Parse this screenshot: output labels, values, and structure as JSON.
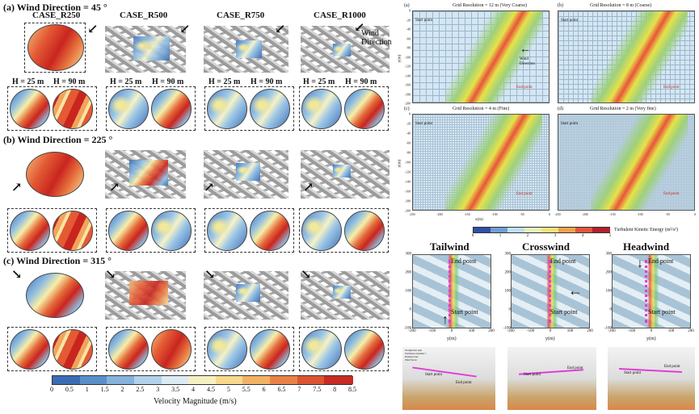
{
  "left": {
    "sections": [
      {
        "title": "(a) Wind Direction = 45 °"
      },
      {
        "title": "(b) Wind Direction = 225 °"
      },
      {
        "title": "(c) Wind Direction = 315 °"
      }
    ],
    "cases": [
      "CASE_R250",
      "CASE_R500",
      "CASE_R750",
      "CASE_R1000"
    ],
    "height_labels": [
      "H = 25 m",
      "H = 90 m"
    ],
    "wind_label": "Wind Direction",
    "colorbar": {
      "ticks": [
        "0",
        "0.5",
        "1",
        "1.5",
        "2",
        "2.5",
        "3",
        "3.5",
        "4",
        "4.5",
        "5",
        "5.5",
        "6",
        "6.5",
        "7",
        "7.5",
        "8",
        "8.5"
      ],
      "label": "Velocity Magnitude (m/s)",
      "colors": [
        "#3a6db3",
        "#5a8fca",
        "#86b2dc",
        "#b2d2ea",
        "#dcebf3",
        "#f4f0c2",
        "#f6d98e",
        "#f2b266",
        "#ea8247",
        "#dd5433",
        "#c82a24"
      ]
    }
  },
  "tke_panels": [
    {
      "tag": "(a)",
      "title": "Grid Resolution = 12 m (Very Coarse)"
    },
    {
      "tag": "(b)",
      "title": "Grid Resolution = 8 m (Coarse)"
    },
    {
      "tag": "(c)",
      "title": "Grid Resolution = 4 m (Fine)"
    },
    {
      "tag": "(d)",
      "title": "Grid Resolution = 2 m (Very fine)"
    }
  ],
  "tke_labels": {
    "start": "Start point",
    "end": "End point",
    "wind": "Wind Direction",
    "ylabel": "y(m)",
    "xlabel": "x(m)",
    "yticks": [
      "0",
      "-20",
      "-40",
      "-60",
      "-80",
      "-100",
      "-120",
      "-140",
      "-160",
      "-180",
      "-200"
    ],
    "xticks": [
      "-250",
      "-200",
      "-150",
      "-100",
      "-50",
      "0"
    ]
  },
  "tke_colorbar": {
    "ticks": [
      "0",
      "1",
      "2",
      "3",
      "4",
      "5"
    ],
    "label": "Turbulent Kinetic Energy (m²/s²)",
    "colors": [
      "#2f4fa8",
      "#6f9fd3",
      "#bfe0ee",
      "#e6f3c0",
      "#f3e27a",
      "#f0a24c",
      "#e0563a",
      "#b3202a"
    ]
  },
  "path_panels": [
    {
      "title": "Tailwind"
    },
    {
      "title": "Crosswind"
    },
    {
      "title": "Headwind"
    }
  ],
  "path_labels": {
    "end": "End point",
    "start": "Start point",
    "ylabel": "y(m)",
    "xticks": [
      "-200",
      "-100",
      "0",
      "100",
      "200"
    ],
    "yticks": [
      "300",
      "200",
      "100",
      "0",
      "-100"
    ]
  },
  "legend3d": [
    "Straight-line path",
    "Turbulence intensity >",
    "Planned route",
    "Wind Vector"
  ]
}
